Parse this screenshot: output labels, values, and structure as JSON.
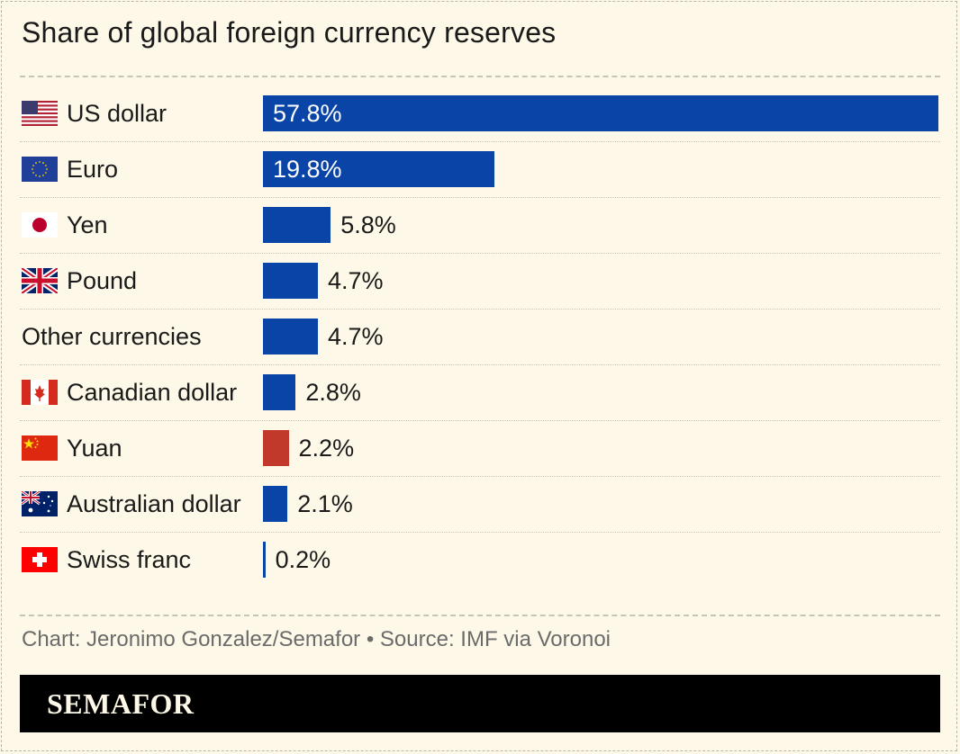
{
  "chart_data": {
    "type": "bar",
    "orientation": "horizontal",
    "title": "Share of global foreign currency reserves",
    "categories": [
      "US dollar",
      "Euro",
      "Yen",
      "Pound",
      "Other currencies",
      "Canadian dollar",
      "Yuan",
      "Australian dollar",
      "Swiss franc"
    ],
    "values": [
      57.8,
      19.8,
      5.8,
      4.7,
      4.7,
      2.8,
      2.2,
      2.1,
      0.2
    ],
    "value_labels": [
      "57.8%",
      "19.8%",
      "5.8%",
      "4.7%",
      "4.7%",
      "2.8%",
      "2.2%",
      "2.1%",
      "0.2%"
    ],
    "flags": [
      "us-flag-icon",
      "eu-flag-icon",
      "japan-flag-icon",
      "uk-flag-icon",
      "",
      "canada-flag-icon",
      "china-flag-icon",
      "australia-flag-icon",
      "switzerland-flag-icon"
    ],
    "bar_colors": [
      "#0a44a6",
      "#0a44a6",
      "#0a44a6",
      "#0a44a6",
      "#0a44a6",
      "#0a44a6",
      "#c0392b",
      "#0a44a6",
      "#0a44a6"
    ],
    "xlim": [
      0,
      57.8
    ],
    "grid": false,
    "legend": "none"
  },
  "credit": "Chart: Jeronimo Gonzalez/Semafor • Source: IMF via Voronoi",
  "brand": "SEMAFOR"
}
